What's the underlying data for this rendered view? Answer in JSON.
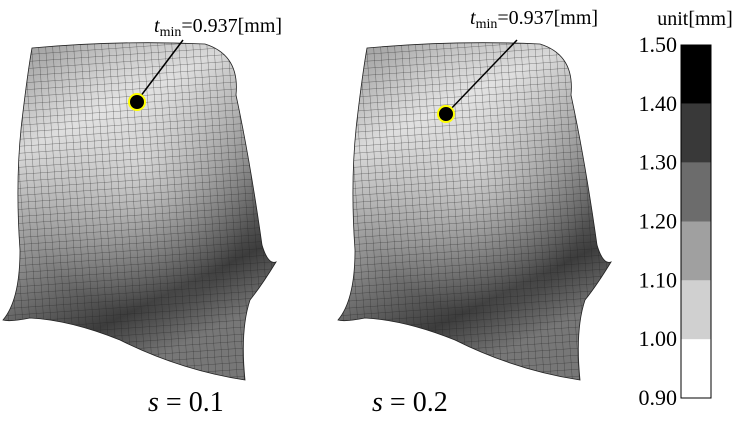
{
  "panels": [
    {
      "annotation": {
        "symbol": "t",
        "subscript": "min",
        "text": "=0.937[mm]"
      },
      "caption": {
        "variable": "s",
        "text": " = 0.1"
      }
    },
    {
      "annotation": {
        "symbol": "t",
        "subscript": "min",
        "text": "=0.937[mm]"
      },
      "caption": {
        "variable": "s",
        "text": " = 0.2"
      }
    }
  ],
  "colorbar": {
    "unit": "unit[mm]",
    "ticks": [
      "0.90",
      "1.00",
      "1.10",
      "1.20",
      "1.30",
      "1.40",
      "1.50"
    ],
    "colors": [
      "#ffffff",
      "#d0d0d0",
      "#a0a0a0",
      "#6c6c6c",
      "#393939",
      "#000000"
    ]
  }
}
